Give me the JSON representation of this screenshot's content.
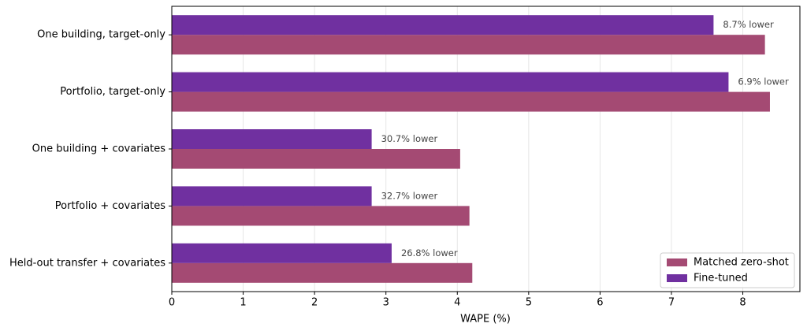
{
  "chart_data": {
    "type": "hbar",
    "xlabel": "WAPE (%)",
    "categories": [
      "One building, target-only",
      "Portfolio, target-only",
      "One building + covariates",
      "Portfolio + covariates",
      "Held-out transfer + covariates"
    ],
    "series": [
      {
        "name": "Matched zero-shot",
        "color": "#a44a73",
        "values": [
          8.31,
          8.38,
          4.04,
          4.17,
          4.21
        ]
      },
      {
        "name": "Fine-tuned",
        "color": "#7030a0",
        "values": [
          7.59,
          7.8,
          2.8,
          2.8,
          3.08
        ]
      }
    ],
    "annotations": [
      "8.7% lower",
      "6.9% lower",
      "30.7% lower",
      "32.7% lower",
      "26.8% lower"
    ],
    "xlim": [
      0,
      8.8
    ],
    "xticks": [
      0,
      1,
      2,
      3,
      4,
      5,
      6,
      7,
      8
    ],
    "grid": true,
    "legend": "lower right"
  }
}
